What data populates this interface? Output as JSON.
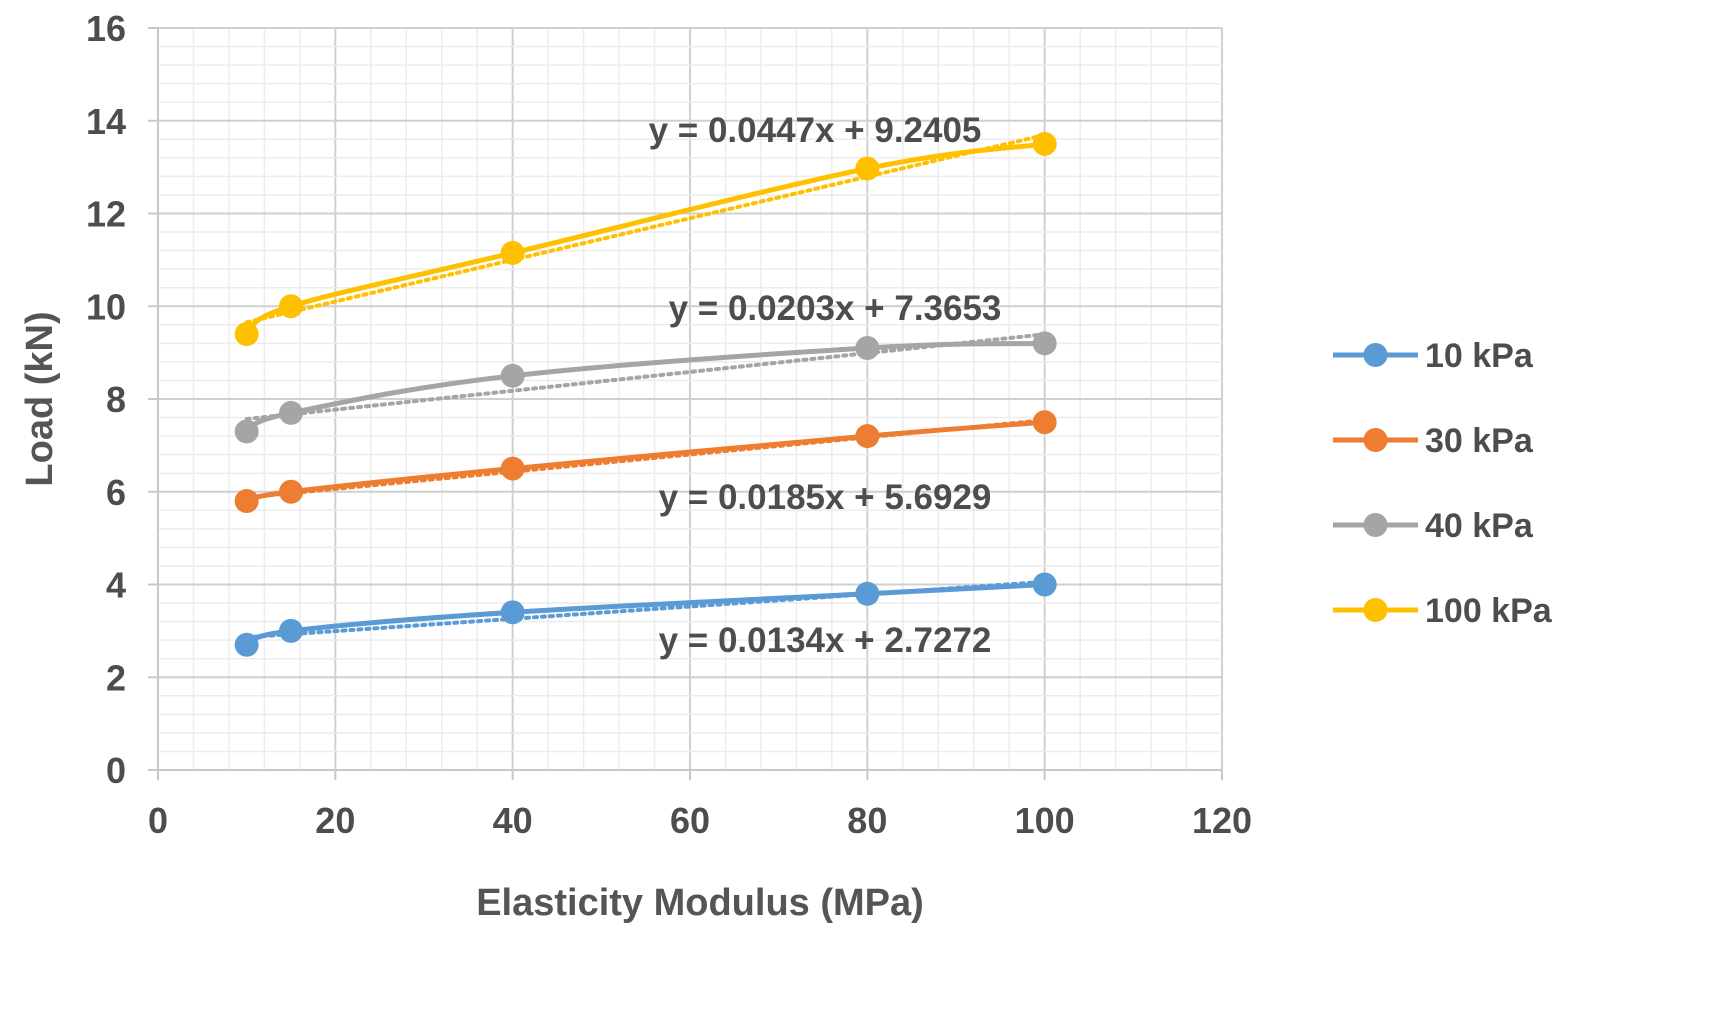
{
  "chart_data": {
    "type": "line",
    "title": "",
    "xlabel": "Elasticity Modulus (MPa)",
    "ylabel": "Load (kN)",
    "xlim": [
      0,
      120
    ],
    "ylim": [
      0,
      16
    ],
    "x_ticks": [
      "0",
      "20",
      "40",
      "60",
      "80",
      "100",
      "120"
    ],
    "y_ticks": [
      "0",
      "2",
      "4",
      "6",
      "8",
      "10",
      "12",
      "14",
      "16"
    ],
    "x": [
      10,
      15,
      40,
      80,
      100
    ],
    "grid": true,
    "minor_grid": true,
    "legend_position": "right",
    "series": [
      {
        "name": "10 kPa",
        "color": "#5b9bd5",
        "values": [
          2.7,
          3.0,
          3.4,
          3.8,
          4.0
        ],
        "trendline": {
          "slope": 0.0134,
          "intercept": 2.7272,
          "label": "y = 0.0134x + 2.7272"
        }
      },
      {
        "name": "30 kPa",
        "color": "#ed7d31",
        "values": [
          5.8,
          6.0,
          6.5,
          7.2,
          7.5
        ],
        "trendline": {
          "slope": 0.0185,
          "intercept": 5.6929,
          "label": "y = 0.0185x + 5.6929"
        }
      },
      {
        "name": "40 kPa",
        "color": "#a5a5a5",
        "values": [
          7.3,
          7.7,
          8.5,
          9.1,
          9.2
        ],
        "trendline": {
          "slope": 0.0203,
          "intercept": 7.3653,
          "label": "y = 0.0203x + 7.3653"
        }
      },
      {
        "name": "100 kPa",
        "color": "#ffc000",
        "values": [
          9.4,
          10.0,
          11.15,
          12.97,
          13.5
        ],
        "trendline": {
          "slope": 0.0447,
          "intercept": 9.2405,
          "label": "y = 0.0447x + 9.2405"
        }
      }
    ]
  }
}
